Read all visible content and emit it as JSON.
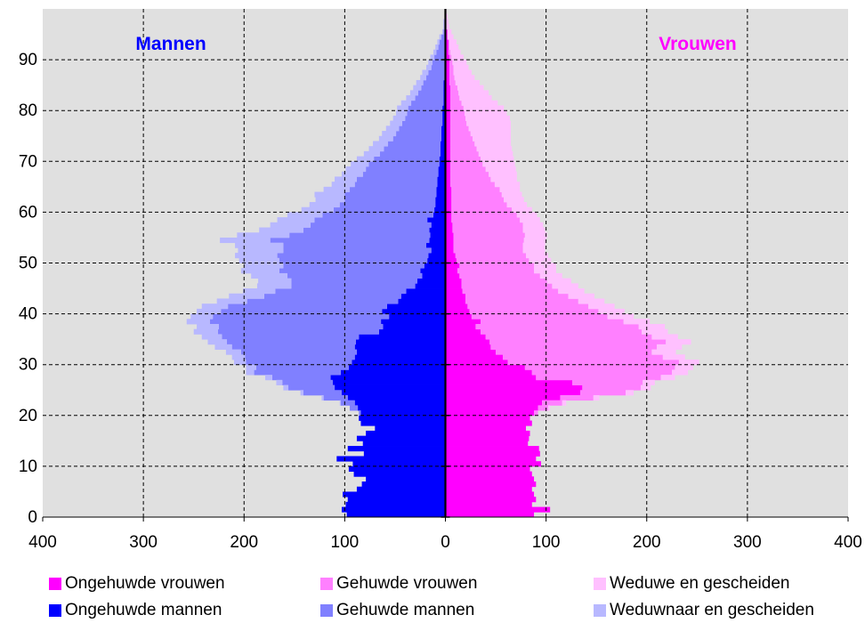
{
  "chart_data": {
    "type": "bar",
    "orientation": "horizontal-population-pyramid",
    "stacked": true,
    "annotations": {
      "left": "Mannen",
      "right": "Vrouwen"
    },
    "x_ticks": [
      "400",
      "300",
      "200",
      "100",
      "0",
      "100",
      "200",
      "300",
      "400"
    ],
    "xlim": [
      -400,
      400
    ],
    "y_ticks": [
      "0",
      "10",
      "20",
      "30",
      "40",
      "50",
      "60",
      "70",
      "80",
      "90"
    ],
    "ylim": [
      0,
      99
    ],
    "grid": true,
    "legend_position": "bottom",
    "colors": {
      "ongehuwd_vrouwen": "#ff00ff",
      "gehuwd_vrouwen": "#ff80ff",
      "weduwe_vrouwen": "#ffc0ff",
      "ongehuwd_mannen": "#0000ff",
      "gehuwd_mannen": "#8080ff",
      "weduwnaar_mannen": "#b8b8ff",
      "plot_background": "#e0e0e0",
      "mannen_label": "#0000ff",
      "vrouwen_label": "#ff00ff"
    },
    "ages": [
      0,
      1,
      2,
      3,
      4,
      5,
      6,
      7,
      8,
      9,
      10,
      11,
      12,
      13,
      14,
      15,
      16,
      17,
      18,
      19,
      20,
      21,
      22,
      23,
      24,
      25,
      26,
      27,
      28,
      29,
      30,
      31,
      32,
      33,
      34,
      35,
      36,
      37,
      38,
      39,
      40,
      41,
      42,
      43,
      44,
      45,
      46,
      47,
      48,
      49,
      50,
      51,
      52,
      53,
      54,
      55,
      56,
      57,
      58,
      59,
      60,
      61,
      62,
      63,
      64,
      65,
      66,
      67,
      68,
      69,
      70,
      71,
      72,
      73,
      74,
      75,
      76,
      77,
      78,
      79,
      80,
      81,
      82,
      83,
      84,
      85,
      86,
      87,
      88,
      89,
      90,
      91,
      92,
      93,
      94,
      95,
      96,
      97,
      98,
      99
    ],
    "series": [
      {
        "name": "Ongehuwde mannen",
        "side": "men",
        "values": [
          98,
          103,
          99,
          97,
          102,
          88,
          83,
          79,
          91,
          96,
          92,
          108,
          81,
          97,
          82,
          88,
          79,
          70,
          84,
          86,
          84,
          87,
          90,
          97,
          103,
          110,
          112,
          114,
          104,
          96,
          93,
          90,
          88,
          90,
          89,
          86,
          66,
          62,
          64,
          56,
          63,
          58,
          47,
          44,
          39,
          30,
          28,
          23,
          25,
          21,
          18,
          17,
          14,
          19,
          16,
          15,
          16,
          14,
          18,
          12,
          11,
          10,
          10,
          9,
          9,
          8,
          8,
          7,
          7,
          6,
          6,
          5,
          5,
          5,
          4,
          4,
          4,
          3,
          3,
          3,
          3,
          2,
          2,
          2,
          2,
          2,
          1,
          1,
          1,
          1,
          1,
          1,
          1,
          1,
          0,
          0,
          0,
          0,
          0,
          0
        ]
      },
      {
        "name": "Gehuwde mannen",
        "side": "men",
        "values": [
          0,
          0,
          0,
          0,
          0,
          0,
          0,
          0,
          0,
          0,
          0,
          0,
          0,
          0,
          0,
          0,
          0,
          0,
          0,
          0,
          2,
          8,
          14,
          24,
          38,
          46,
          50,
          58,
          86,
          92,
          105,
          109,
          115,
          122,
          128,
          136,
          160,
          163,
          170,
          175,
          160,
          158,
          150,
          136,
          130,
          123,
          125,
          134,
          140,
          140,
          147,
          150,
          147,
          142,
          158,
          140,
          125,
          120,
          112,
          110,
          100,
          95,
          90,
          91,
          86,
          82,
          80,
          75,
          72,
          70,
          65,
          60,
          56,
          52,
          48,
          45,
          42,
          40,
          37,
          35,
          34,
          32,
          28,
          25,
          22,
          20,
          18,
          16,
          13,
          12,
          10,
          8,
          6,
          5,
          4,
          2,
          1,
          1,
          0,
          0
        ]
      },
      {
        "name": "Weduwnaar en gescheiden",
        "side": "men",
        "values": [
          0,
          0,
          0,
          0,
          0,
          0,
          0,
          0,
          0,
          0,
          0,
          0,
          0,
          0,
          0,
          0,
          0,
          0,
          0,
          0,
          0,
          0,
          1,
          2,
          3,
          5,
          6,
          7,
          8,
          10,
          12,
          13,
          15,
          17,
          19,
          20,
          24,
          22,
          23,
          22,
          24,
          26,
          30,
          35,
          32,
          34,
          33,
          36,
          38,
          39,
          40,
          42,
          45,
          48,
          50,
          52,
          44,
          40,
          37,
          35,
          32,
          30,
          29,
          30,
          26,
          23,
          22,
          21,
          20,
          18,
          17,
          16,
          15,
          15,
          14,
          14,
          13,
          12,
          12,
          11,
          11,
          10,
          9,
          8,
          8,
          7,
          6,
          6,
          5,
          4,
          4,
          3,
          3,
          2,
          2,
          1,
          1,
          1,
          0,
          0
        ]
      },
      {
        "name": "Ongehuwde vrouwen",
        "side": "women",
        "values": [
          88,
          104,
          86,
          90,
          88,
          86,
          90,
          88,
          86,
          84,
          95,
          90,
          94,
          93,
          82,
          83,
          84,
          80,
          86,
          84,
          88,
          92,
          96,
          114,
          134,
          136,
          126,
          90,
          86,
          79,
          62,
          57,
          50,
          45,
          44,
          40,
          35,
          30,
          35,
          26,
          24,
          22,
          20,
          20,
          17,
          16,
          16,
          14,
          12,
          14,
          11,
          10,
          8,
          8,
          8,
          8,
          7,
          7,
          6,
          6,
          6,
          6,
          6,
          6,
          6,
          5,
          5,
          5,
          5,
          5,
          5,
          5,
          5,
          5,
          5,
          5,
          5,
          5,
          5,
          5,
          5,
          5,
          5,
          5,
          5,
          4,
          4,
          4,
          4,
          4,
          4,
          3,
          3,
          3,
          2,
          2,
          1,
          1,
          1,
          0
        ]
      },
      {
        "name": "Gehuwde vrouwen",
        "side": "women",
        "values": [
          0,
          0,
          0,
          0,
          0,
          0,
          0,
          0,
          0,
          0,
          0,
          0,
          0,
          0,
          0,
          0,
          0,
          0,
          0,
          0,
          4,
          10,
          20,
          33,
          45,
          58,
          70,
          124,
          139,
          149,
          170,
          159,
          155,
          165,
          175,
          165,
          160,
          162,
          142,
          135,
          128,
          120,
          112,
          102,
          95,
          90,
          85,
          80,
          76,
          74,
          72,
          70,
          69,
          69,
          70,
          71,
          70,
          70,
          68,
          65,
          60,
          55,
          52,
          50,
          48,
          44,
          40,
          38,
          35,
          32,
          30,
          28,
          26,
          24,
          22,
          20,
          18,
          16,
          15,
          14,
          13,
          11,
          9,
          8,
          7,
          6,
          5,
          4,
          4,
          3,
          2,
          2,
          1,
          1,
          0,
          0,
          0,
          0,
          0,
          0
        ]
      },
      {
        "name": "Weduwe en gescheiden",
        "side": "women",
        "values": [
          0,
          0,
          0,
          0,
          0,
          0,
          0,
          0,
          0,
          0,
          0,
          0,
          0,
          0,
          0,
          0,
          0,
          0,
          0,
          0,
          0,
          2,
          4,
          6,
          8,
          10,
          12,
          14,
          16,
          18,
          20,
          22,
          24,
          25,
          25,
          26,
          26,
          26,
          26,
          26,
          26,
          26,
          26,
          26,
          26,
          26,
          24,
          22,
          22,
          22,
          22,
          22,
          22,
          22,
          22,
          22,
          22,
          20,
          20,
          20,
          20,
          20,
          20,
          20,
          20,
          25,
          26,
          28,
          30,
          32,
          33,
          34,
          35,
          36,
          38,
          40,
          42,
          44,
          44,
          42,
          40,
          36,
          32,
          30,
          26,
          24,
          20,
          18,
          15,
          14,
          12,
          10,
          9,
          7,
          6,
          4,
          3,
          2,
          1,
          1
        ]
      }
    ]
  },
  "legend": {
    "items": [
      {
        "label": "Ongehuwde vrouwen",
        "color": "#ff00ff"
      },
      {
        "label": "Gehuwde vrouwen",
        "color": "#ff80ff"
      },
      {
        "label": "Weduwe en gescheiden",
        "color": "#ffc0ff"
      },
      {
        "label": "Ongehuwde mannen",
        "color": "#0000ff"
      },
      {
        "label": "Gehuwde mannen",
        "color": "#8080ff"
      },
      {
        "label": "Weduwnaar en gescheiden",
        "color": "#b8b8ff"
      }
    ]
  }
}
